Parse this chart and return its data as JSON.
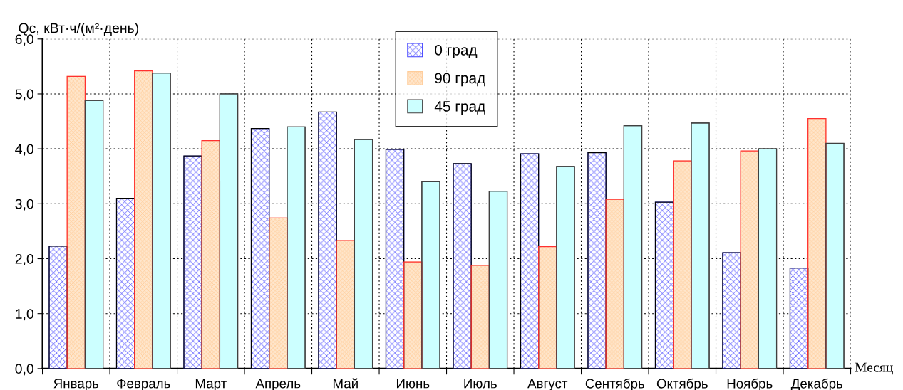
{
  "chart_data": {
    "type": "bar",
    "ylabel": "Qc, кВт·ч/(м²·день)",
    "xlabel": "Месяц",
    "categories": [
      "Январь",
      "Февраль",
      "Март",
      "Апрель",
      "Май",
      "Июнь",
      "Июль",
      "Август",
      "Сентябрь",
      "Октябрь",
      "Ноябрь",
      "Декабрь"
    ],
    "series": [
      {
        "name": "0 град",
        "color": "#4040ff",
        "values": [
          2.23,
          3.1,
          3.87,
          4.37,
          4.67,
          3.99,
          3.73,
          3.91,
          3.93,
          3.03,
          2.11,
          1.83
        ]
      },
      {
        "name": "90 град",
        "color": "#ffcc99",
        "values": [
          5.32,
          5.42,
          4.15,
          2.74,
          2.33,
          1.94,
          1.88,
          2.22,
          3.08,
          3.78,
          3.96,
          4.55
        ]
      },
      {
        "name": "45 град",
        "color": "#ccffff",
        "values": [
          4.88,
          5.38,
          5.0,
          4.4,
          4.17,
          3.4,
          3.23,
          3.68,
          4.42,
          4.47,
          4.0,
          4.1
        ]
      }
    ],
    "ylim": [
      0,
      6
    ],
    "yticks": [
      {
        "value": 0,
        "label": "0,0"
      },
      {
        "value": 1,
        "label": "1,0"
      },
      {
        "value": 2,
        "label": "2,0"
      },
      {
        "value": 3,
        "label": "3,0"
      },
      {
        "value": 4,
        "label": "4,0"
      },
      {
        "value": 5,
        "label": "5,0"
      },
      {
        "value": 6,
        "label": "6,0"
      }
    ],
    "grid": true,
    "legend": "top"
  }
}
